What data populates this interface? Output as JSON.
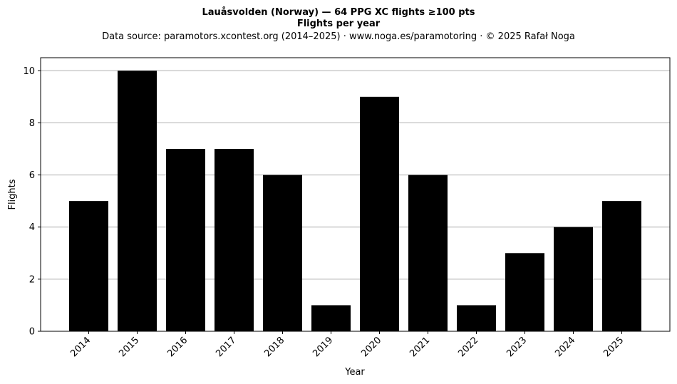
{
  "header": {
    "title": "Lauåsvolden (Norway)  —  64 PPG XC flights ≥100 pts",
    "subtitle": "Flights per year",
    "source": "Data source: paramotors.xcontest.org (2014–2025)  ·  www.noga.es/paramotoring  ·  © 2025 Rafał Noga"
  },
  "chart_data": {
    "type": "bar",
    "title": "Lauåsvolden (Norway)  —  64 PPG XC flights ≥100 pts",
    "subtitle": "Flights per year",
    "xlabel": "Year",
    "ylabel": "Flights",
    "categories": [
      "2014",
      "2015",
      "2016",
      "2017",
      "2018",
      "2019",
      "2020",
      "2021",
      "2022",
      "2023",
      "2024",
      "2025"
    ],
    "values": [
      5,
      10,
      7,
      7,
      6,
      1,
      9,
      6,
      1,
      3,
      4,
      5
    ],
    "ylim": [
      0,
      10.5
    ],
    "yticks": [
      0,
      2,
      4,
      6,
      8,
      10
    ],
    "grid": "y",
    "bar_color": "#000000",
    "grid_color": "#b0b0b0"
  }
}
